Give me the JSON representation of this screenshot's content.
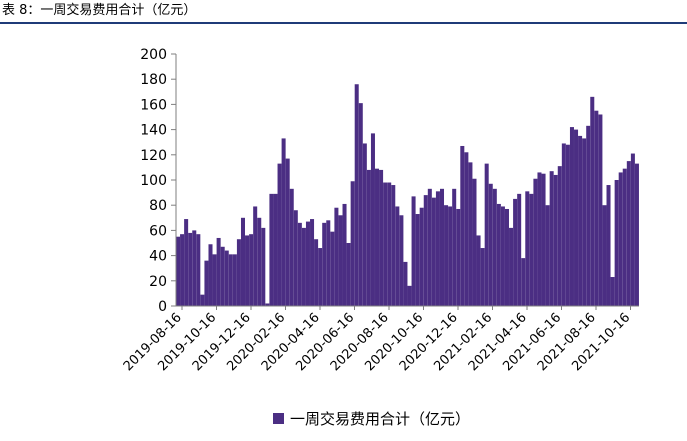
{
  "caption": "表 8：一周交易费用合计（亿元）",
  "colors": {
    "bar": "#4b2e83",
    "axis": "#7f7f7f",
    "rule": "#1f3b78"
  },
  "chart_data": {
    "type": "bar",
    "legend": {
      "label": "一周交易费用合计（亿元）",
      "position": "bottom"
    },
    "ylim": [
      0,
      200
    ],
    "yticks": [
      "0",
      "20",
      "40",
      "60",
      "80",
      "100",
      "120",
      "140",
      "160",
      "180",
      "200"
    ],
    "xticks": [
      "2019-08-16",
      "2019-10-16",
      "2019-12-16",
      "2020-02-16",
      "2020-04-16",
      "2020-06-16",
      "2020-08-16",
      "2020-10-16",
      "2020-12-16",
      "2021-02-16",
      "2021-04-16",
      "2021-06-16",
      "2021-08-16",
      "2021-10-16"
    ],
    "values": [
      55,
      57,
      69,
      58,
      60,
      57,
      9,
      36,
      49,
      41,
      54,
      47,
      44,
      41,
      41,
      53,
      70,
      56,
      57,
      79,
      70,
      62,
      2,
      89,
      89,
      113,
      133,
      117,
      93,
      76,
      66,
      62,
      67,
      69,
      53,
      46,
      66,
      68,
      59,
      78,
      72,
      81,
      50,
      99,
      176,
      161,
      129,
      108,
      137,
      109,
      108,
      98,
      98,
      96,
      79,
      72,
      35,
      16,
      87,
      73,
      78,
      88,
      93,
      86,
      91,
      93,
      80,
      79,
      93,
      77,
      127,
      122,
      114,
      101,
      56,
      46,
      113,
      97,
      93,
      81,
      79,
      77,
      62,
      85,
      89,
      38,
      91,
      89,
      101,
      106,
      105,
      80,
      107,
      104,
      111,
      129,
      128,
      142,
      140,
      135,
      133,
      143,
      166,
      155,
      152,
      80,
      96,
      23,
      100,
      106,
      109,
      115,
      121,
      113
    ]
  }
}
